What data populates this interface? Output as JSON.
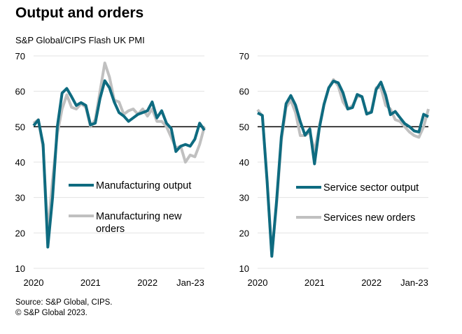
{
  "title": "Output and orders",
  "subtitle": "S&P Global/CIPS  Flash  UK PMI",
  "source": [
    "Source: S&P Global, CIPS.",
    "© S&P Global 2023."
  ],
  "colors": {
    "output": "#0e6b80",
    "new_orders": "#c0c0c0",
    "reference_line": "#000000",
    "grid": "#e3e3e3"
  },
  "chart_data": [
    {
      "type": "line",
      "x_labels": [
        "2020",
        "2021",
        "2022",
        "Jan-23"
      ],
      "x_range": [
        "Jan-2020",
        "Jan-2023"
      ],
      "frequency": "monthly",
      "ylim": [
        10,
        70
      ],
      "yticks": [
        10,
        20,
        30,
        40,
        50,
        60,
        70
      ],
      "reference_line": 50,
      "grid": true,
      "legend": "inside-lower-right",
      "series": [
        {
          "name": "Manufacturing output",
          "color": "#0e6b80",
          "values": [
            50.3,
            51.9,
            45,
            16,
            30,
            50,
            59.5,
            60.8,
            58.5,
            56,
            56.8,
            56,
            50.5,
            51,
            58,
            63,
            61,
            57,
            54,
            53,
            51.5,
            52.5,
            53.5,
            54,
            54.5,
            57,
            52.5,
            54.5,
            51,
            49.5,
            43,
            44.5,
            45,
            44.5,
            46.5,
            51,
            49
          ]
        },
        {
          "name": "Manufacturing new orders",
          "color": "#c0c0c0",
          "values": [
            51,
            52,
            44,
            20,
            35,
            48,
            55,
            59,
            55.5,
            55,
            56.5,
            55.5,
            50,
            52,
            60,
            68,
            64,
            57.5,
            57,
            53.5,
            54.5,
            55,
            53.5,
            55,
            53,
            55,
            51.5,
            51.5,
            50,
            47,
            44,
            44.5,
            40,
            42,
            41.5,
            45,
            50
          ]
        }
      ]
    },
    {
      "type": "line",
      "x_labels": [
        "2020",
        "2021",
        "2022",
        "Jan-23"
      ],
      "x_range": [
        "Jan-2020",
        "Jan-2023"
      ],
      "frequency": "monthly",
      "ylim": [
        10,
        70
      ],
      "yticks": [
        10,
        20,
        30,
        40,
        50,
        60,
        70
      ],
      "reference_line": 50,
      "grid": true,
      "legend": "inside-lower-right",
      "series": [
        {
          "name": "Service sector output",
          "color": "#0e6b80",
          "values": [
            53.9,
            53.2,
            34.5,
            13.4,
            29,
            47.1,
            56.5,
            58.8,
            56.1,
            51.4,
            47.6,
            49.4,
            39.5,
            49.5,
            56.3,
            61,
            62.9,
            62.4,
            59.6,
            55,
            55.4,
            59.1,
            58.5,
            53.6,
            54.1,
            60.5,
            62.6,
            58.9,
            53.4,
            54.3,
            52.6,
            50.9,
            50,
            48.8,
            48.5,
            53.5,
            52.8
          ]
        },
        {
          "name": "Services new orders",
          "color": "#c0c0c0",
          "values": [
            54.8,
            53,
            35,
            14,
            28,
            46,
            55.5,
            57.5,
            54,
            47.5,
            47.5,
            48.5,
            43,
            50,
            56.5,
            61,
            63.3,
            61.5,
            57,
            55,
            56,
            58.5,
            58.5,
            53.5,
            54.5,
            61,
            61,
            56,
            55,
            52,
            51.5,
            50,
            48.5,
            47.5,
            47,
            50,
            55
          ]
        }
      ]
    }
  ]
}
